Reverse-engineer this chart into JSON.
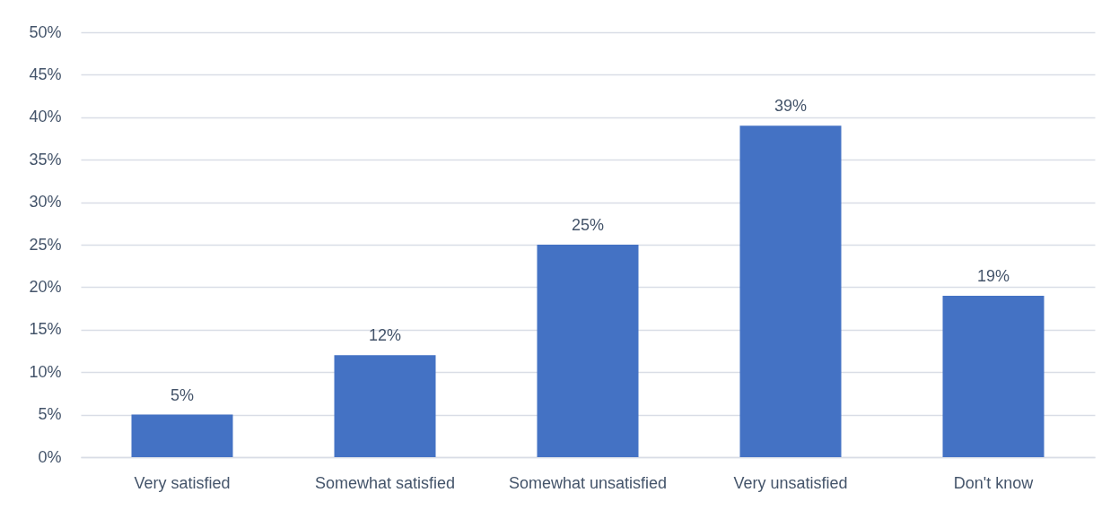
{
  "chart_data": {
    "type": "bar",
    "categories": [
      "Very satisfied",
      "Somewhat satisfied",
      "Somewhat unsatisfied",
      "Very unsatisfied",
      "Don't know"
    ],
    "values": [
      5,
      12,
      25,
      39,
      19
    ],
    "color": "#4472c4",
    "value_labels": [
      "5%",
      "12%",
      "25%",
      "39%",
      "19%"
    ],
    "ylim": [
      0,
      50
    ],
    "yticks": [
      {
        "value": 0,
        "label": "0%"
      },
      {
        "value": 5,
        "label": "5%"
      },
      {
        "value": 10,
        "label": "10%"
      },
      {
        "value": 15,
        "label": "15%"
      },
      {
        "value": 20,
        "label": "20%"
      },
      {
        "value": 25,
        "label": "25%"
      },
      {
        "value": 30,
        "label": "30%"
      },
      {
        "value": 35,
        "label": "35%"
      },
      {
        "value": 40,
        "label": "40%"
      },
      {
        "value": 45,
        "label": "45%"
      },
      {
        "value": 50,
        "label": "50%"
      }
    ],
    "grid": "y"
  }
}
